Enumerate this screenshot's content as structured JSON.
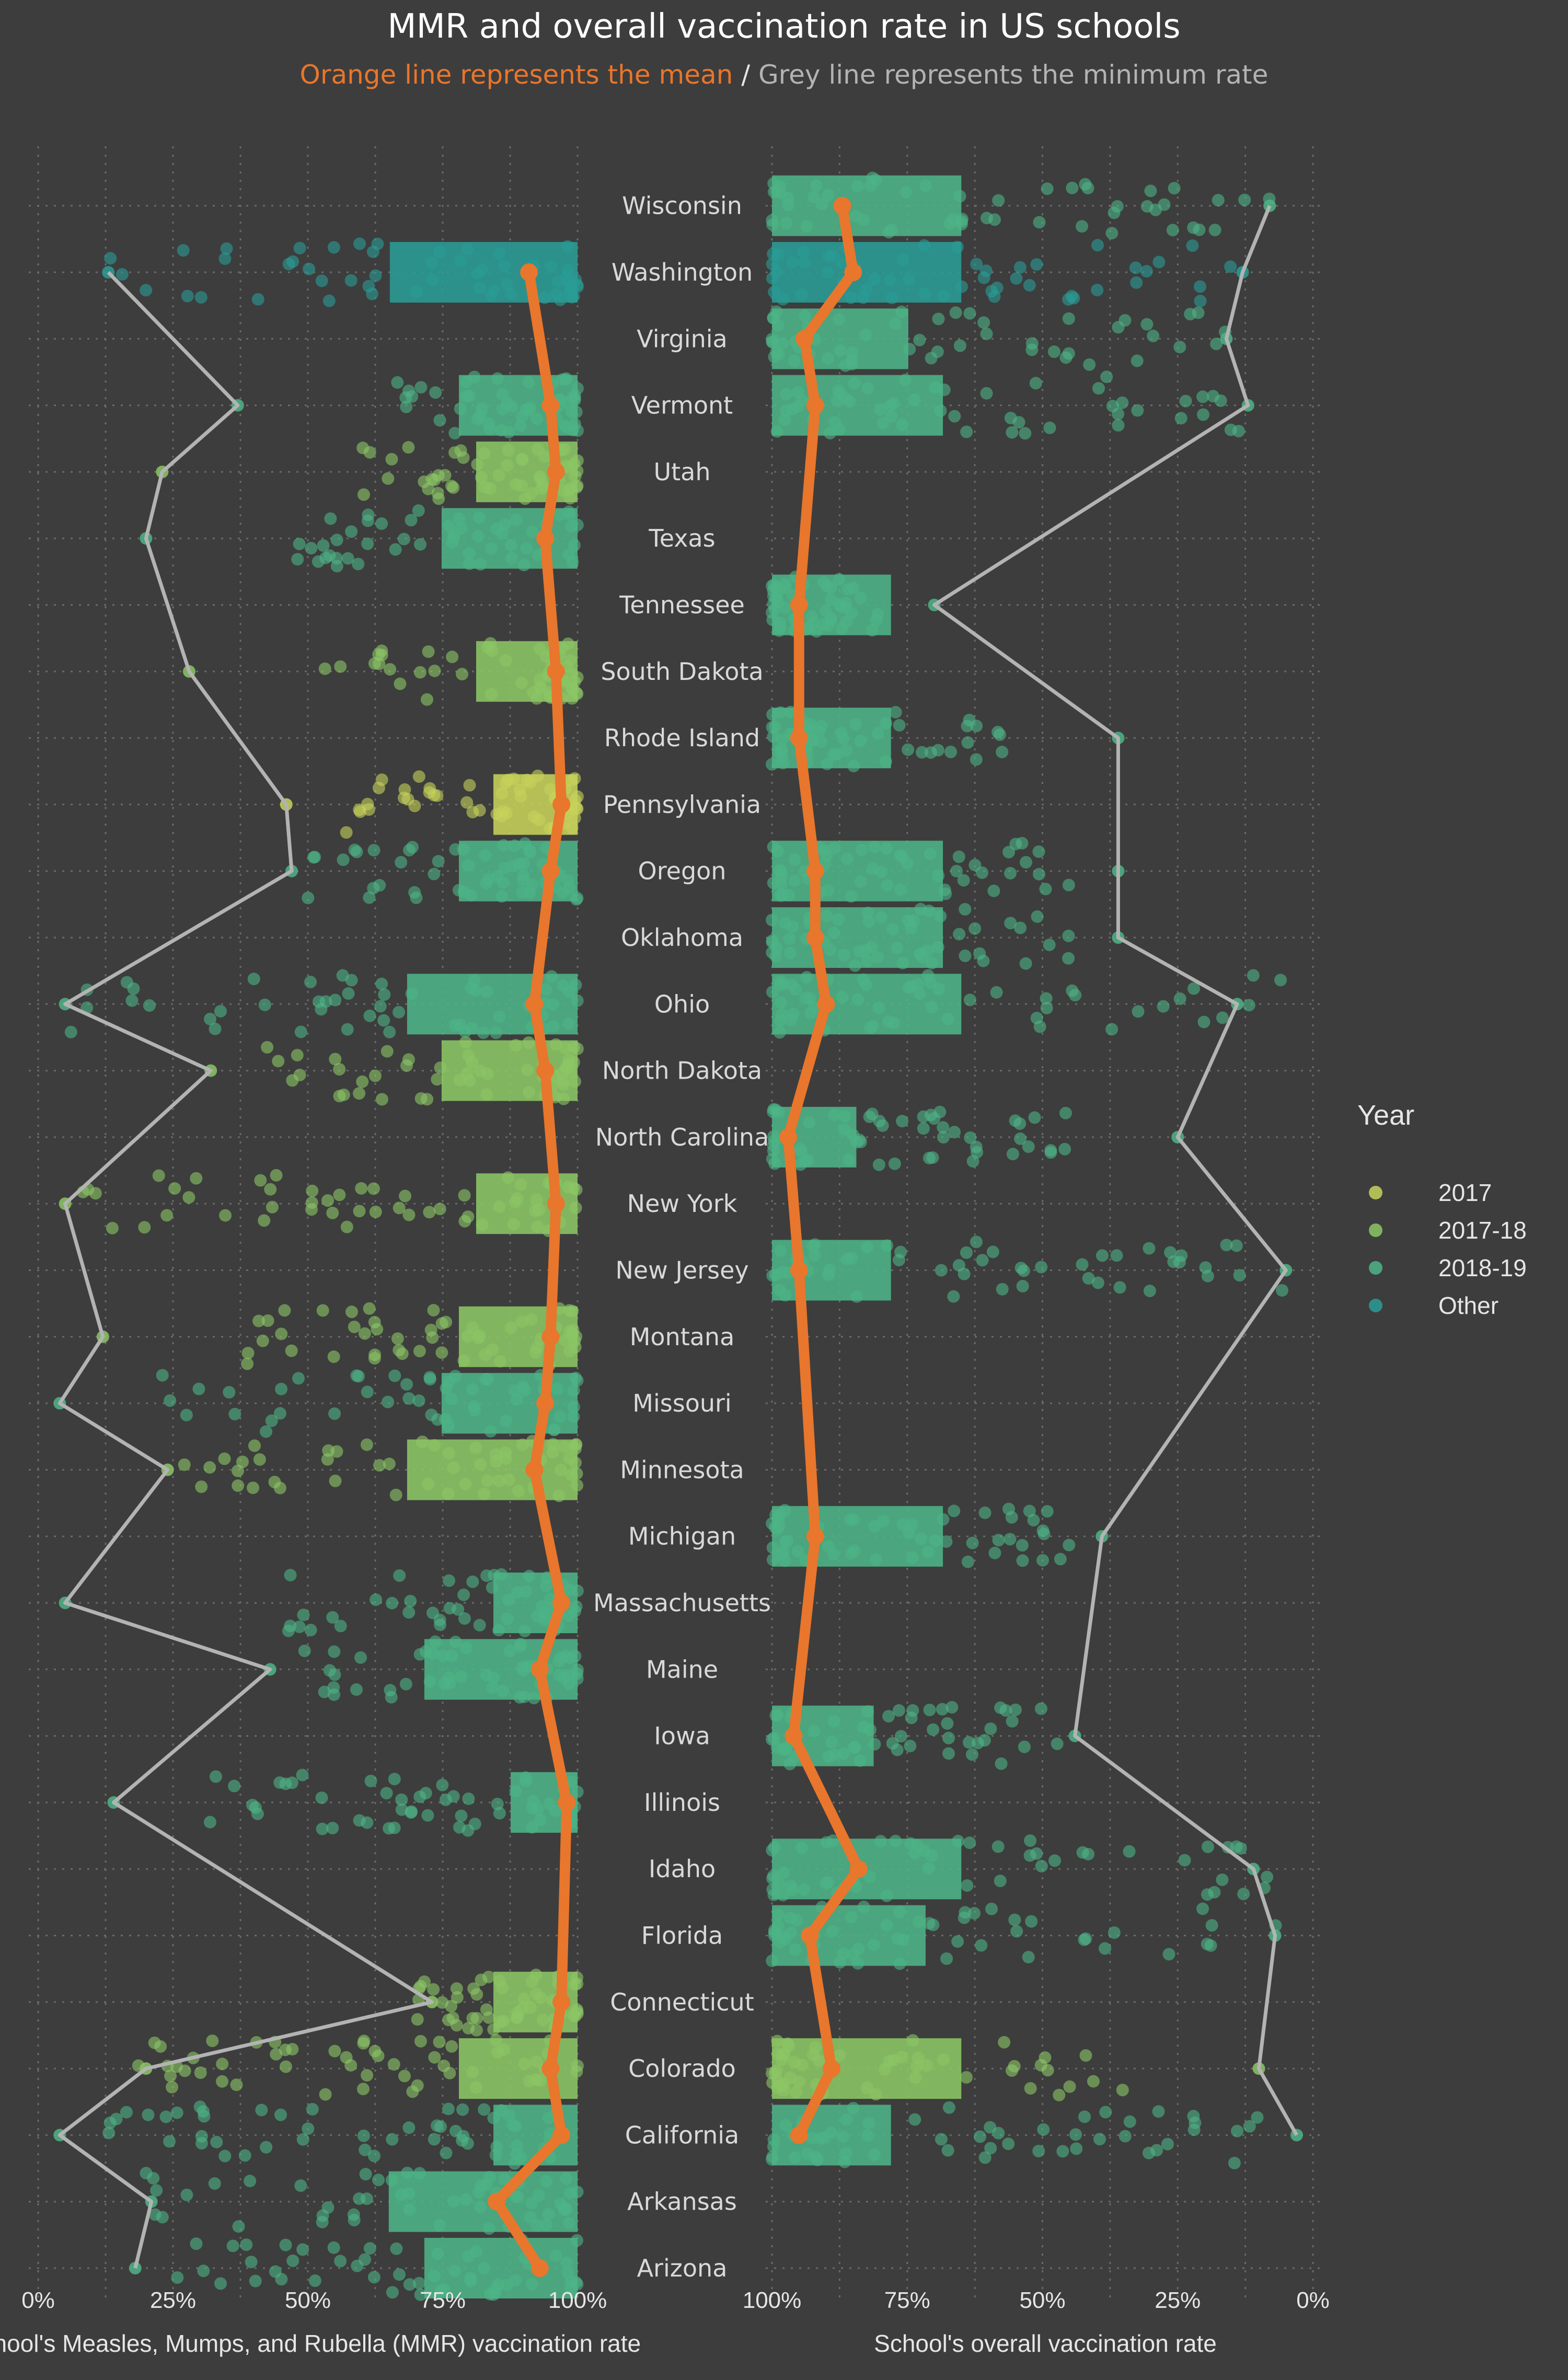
{
  "title": "MMR and overall vaccination rate in US schools",
  "subtitle": {
    "part1": "Orange line represents the mean",
    "sep": " / ",
    "part2": "Grey line represents the minimum rate"
  },
  "colors": {
    "background": "#3d3d3d",
    "mean_line": "#e8762c",
    "min_line": "#b3b3b3",
    "grid": "#6a6a6a",
    "text": "#e6e6e6",
    "state_label": "#d9d9d9",
    "year_colors": {
      "2017": "#c7d25a",
      "2017-18": "#8cc665",
      "2018-19": "#4db487",
      "Other": "#2a9c96"
    }
  },
  "legend": {
    "title": "Year",
    "position": "right",
    "items": [
      "2017",
      "2017-18",
      "2018-19",
      "Other"
    ]
  },
  "chart_data": [
    {
      "type": "scatter",
      "panel": "left",
      "xlabel": "School's Measles, Mumps, and Rubella (MMR) vaccination rate",
      "xlim": [
        0,
        100
      ],
      "x_ticks": [
        "0%",
        "25%",
        "50%",
        "75%",
        "100%"
      ],
      "x_tick_values": [
        0,
        25,
        50,
        75,
        100
      ],
      "categories": [
        "Arizona",
        "Arkansas",
        "California",
        "Colorado",
        "Connecticut",
        "Florida",
        "Idaho",
        "Illinois",
        "Iowa",
        "Maine",
        "Massachusetts",
        "Michigan",
        "Minnesota",
        "Missouri",
        "Montana",
        "New Jersey",
        "New York",
        "North Carolina",
        "North Dakota",
        "Ohio",
        "Oklahoma",
        "Oregon",
        "Pennsylvania",
        "Rhode Island",
        "South Dakota",
        "Tennessee",
        "Texas",
        "Utah",
        "Vermont",
        "Virginia",
        "Washington",
        "Wisconsin"
      ],
      "year_by_state": [
        "2018-19",
        "2018-19",
        "2018-19",
        "2017-18",
        "2017-18",
        null,
        null,
        "2018-19",
        null,
        "2018-19",
        "2018-19",
        null,
        "2017-18",
        "2018-19",
        "2017-18",
        null,
        "2017-18",
        null,
        "2017-18",
        "2018-19",
        null,
        "2018-19",
        "2017",
        null,
        "2017-18",
        null,
        "2018-19",
        "2017-18",
        "2018-19",
        null,
        "Other",
        null
      ],
      "spread_min": [
        25,
        20,
        5,
        18,
        70,
        null,
        null,
        30,
        null,
        45,
        45,
        null,
        25,
        20,
        38,
        null,
        5,
        null,
        35,
        5,
        null,
        50,
        55,
        null,
        48,
        null,
        45,
        60,
        65,
        null,
        10,
        null
      ],
      "series": [
        {
          "name": "mean",
          "values": [
            93,
            85,
            97,
            95,
            97,
            null,
            null,
            98,
            null,
            93,
            97,
            null,
            92,
            94,
            95,
            null,
            96,
            null,
            94,
            92,
            null,
            95,
            97,
            null,
            96,
            null,
            94,
            96,
            95,
            null,
            91,
            null
          ]
        },
        {
          "name": "minimum",
          "values": [
            18,
            21,
            4,
            20,
            73,
            null,
            null,
            14,
            null,
            43,
            5,
            null,
            24,
            4,
            12,
            null,
            5,
            null,
            32,
            5,
            null,
            47,
            46,
            null,
            28,
            null,
            20,
            23,
            37,
            null,
            13,
            null
          ]
        }
      ]
    },
    {
      "type": "scatter",
      "panel": "right",
      "xlabel": "School's overall vaccination rate",
      "xlim": [
        100,
        0
      ],
      "x_ticks": [
        "100%",
        "75%",
        "50%",
        "25%",
        "0%"
      ],
      "x_tick_values": [
        100,
        75,
        50,
        25,
        0
      ],
      "categories": [
        "Arizona",
        "Arkansas",
        "California",
        "Colorado",
        "Connecticut",
        "Florida",
        "Idaho",
        "Illinois",
        "Iowa",
        "Maine",
        "Massachusetts",
        "Michigan",
        "Minnesota",
        "Missouri",
        "Montana",
        "New Jersey",
        "New York",
        "North Carolina",
        "North Dakota",
        "Ohio",
        "Oklahoma",
        "Oregon",
        "Pennsylvania",
        "Rhode Island",
        "South Dakota",
        "Tennessee",
        "Texas",
        "Utah",
        "Vermont",
        "Virginia",
        "Washington",
        "Wisconsin"
      ],
      "year_by_state": [
        "2018-19",
        "2018-19",
        "2018-19",
        "2017-18",
        "2017-18",
        null,
        null,
        "2018-19",
        null,
        "2018-19",
        "2018-19",
        null,
        "2017-18",
        "2018-19",
        "2017-18",
        null,
        "2017-18",
        null,
        "2017-18",
        "2018-19",
        null,
        "2018-19",
        "2017",
        null,
        "2017-18",
        null,
        "2018-19",
        "2017-18",
        "2018-19",
        null,
        "Other",
        null
      ],
      "spread_min": [
        null,
        null,
        4,
        35,
        null,
        5,
        5,
        null,
        45,
        null,
        null,
        38,
        null,
        null,
        null,
        5,
        null,
        45,
        null,
        5,
        45,
        45,
        null,
        55,
        null,
        78,
        null,
        null,
        12,
        15,
        10,
        8
      ],
      "series": [
        {
          "name": "mean",
          "values": [
            null,
            null,
            95,
            89,
            null,
            93,
            84,
            null,
            96,
            null,
            null,
            92,
            null,
            null,
            null,
            95,
            null,
            97,
            null,
            90,
            92,
            92,
            null,
            95,
            null,
            95,
            null,
            null,
            92,
            94,
            85,
            87
          ]
        },
        {
          "name": "minimum",
          "values": [
            null,
            null,
            3,
            10,
            null,
            7,
            11,
            null,
            44,
            null,
            null,
            39,
            null,
            null,
            null,
            5,
            null,
            25,
            null,
            14,
            36,
            36,
            null,
            36,
            null,
            70,
            null,
            null,
            12,
            16,
            13,
            8
          ]
        }
      ]
    }
  ]
}
